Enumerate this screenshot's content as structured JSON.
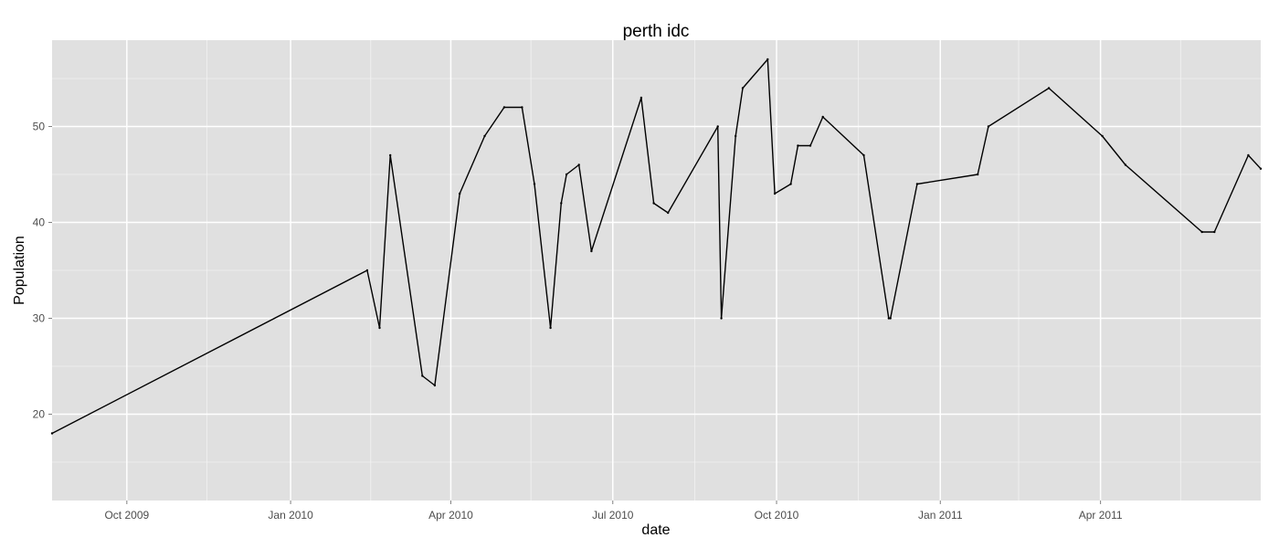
{
  "chart_data": {
    "type": "line",
    "title": "perth idc",
    "xlabel": "date",
    "ylabel": "Population",
    "xlim": [
      "2009-08-20",
      "2011-06-30"
    ],
    "ylim": [
      11,
      59
    ],
    "x_ticks": [
      {
        "date": "2009-10-01",
        "label": "Oct 2009"
      },
      {
        "date": "2010-01-01",
        "label": "Jan 2010"
      },
      {
        "date": "2010-04-01",
        "label": "Apr 2010"
      },
      {
        "date": "2010-07-01",
        "label": "Jul 2010"
      },
      {
        "date": "2010-10-01",
        "label": "Oct 2010"
      },
      {
        "date": "2011-01-01",
        "label": "Jan 2011"
      },
      {
        "date": "2011-04-01",
        "label": "Apr 2011"
      }
    ],
    "x_minor_ticks": [
      "2009-11-15",
      "2010-02-15",
      "2010-05-16",
      "2010-08-16",
      "2010-11-16",
      "2011-02-14",
      "2011-05-16"
    ],
    "y_ticks": [
      20,
      30,
      40,
      50
    ],
    "y_minor_ticks": [
      15,
      25,
      35,
      45,
      55
    ],
    "grid": true,
    "line_color": "#000000",
    "panel_color": "#e0e0e0",
    "grid_color": "#ffffff",
    "x": [
      "2009-08-20",
      "2010-02-13",
      "2010-02-20",
      "2010-02-26",
      "2010-03-16",
      "2010-03-23",
      "2010-04-06",
      "2010-04-20",
      "2010-05-01",
      "2010-05-11",
      "2010-05-18",
      "2010-05-27",
      "2010-06-02",
      "2010-06-05",
      "2010-06-12",
      "2010-06-19",
      "2010-07-17",
      "2010-07-24",
      "2010-08-01",
      "2010-08-29",
      "2010-08-31",
      "2010-09-08",
      "2010-09-12",
      "2010-09-26",
      "2010-09-30",
      "2010-10-09",
      "2010-10-13",
      "2010-10-20",
      "2010-10-27",
      "2010-11-19",
      "2010-12-03",
      "2010-12-04",
      "2010-12-19",
      "2011-01-22",
      "2011-01-28",
      "2011-03-03",
      "2011-04-02",
      "2011-04-15",
      "2011-05-28",
      "2011-06-04",
      "2011-06-23",
      "2011-06-30"
    ],
    "values": [
      18,
      35,
      29,
      47,
      24,
      23,
      43,
      49,
      52,
      52,
      44,
      29,
      42,
      45,
      46,
      37,
      53,
      42,
      41,
      50,
      30,
      49,
      54,
      57,
      43,
      44,
      48,
      48,
      51,
      47,
      30,
      30,
      44,
      45,
      50,
      54,
      49,
      46,
      39,
      39,
      47,
      45.6
    ]
  }
}
